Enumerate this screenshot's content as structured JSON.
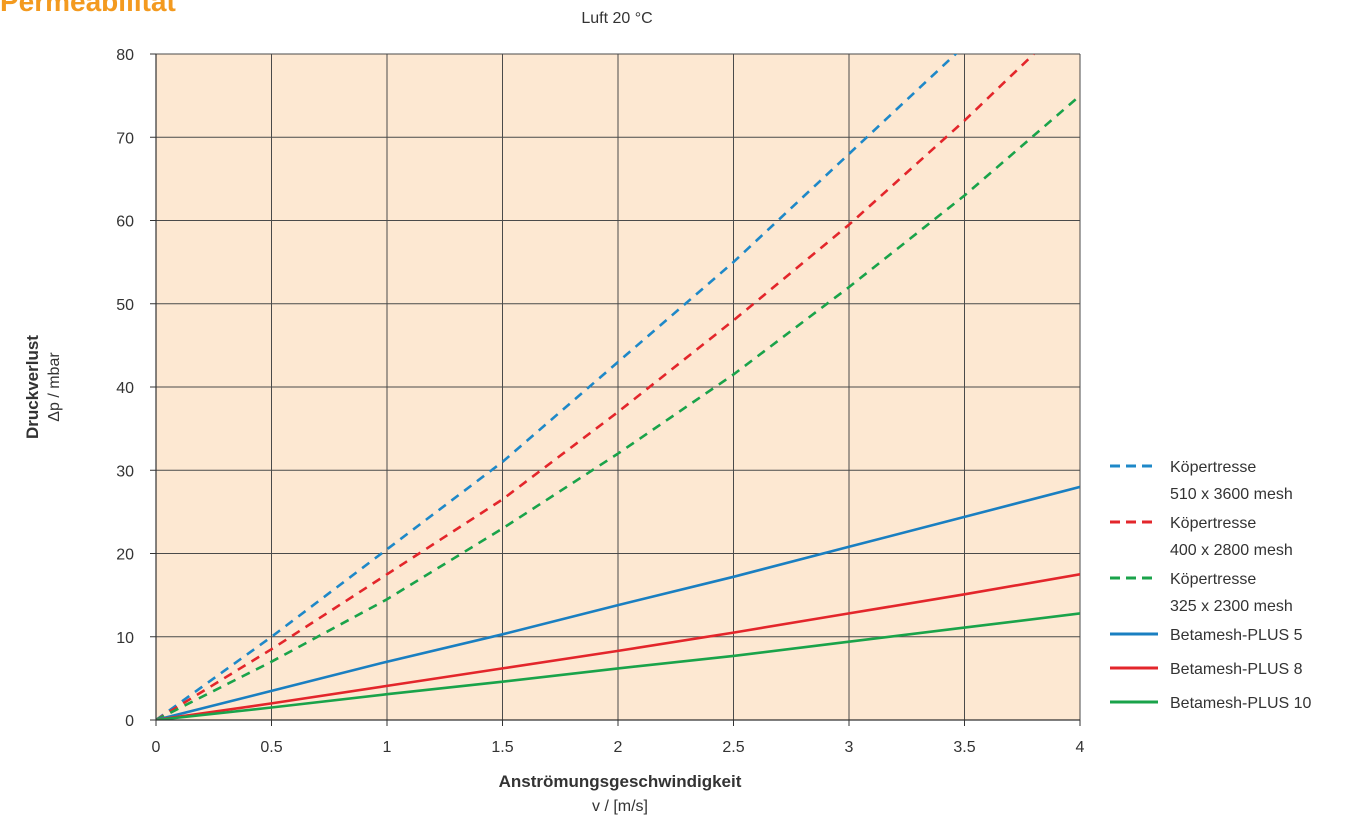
{
  "page": {
    "title": "Permeabilität"
  },
  "chart_data": {
    "type": "line",
    "title": "Luft 20 °C",
    "xlabel": "Anströmungsgeschwindigkeit",
    "xunit": "v / [m/s]",
    "ylabel": "Druckverlust",
    "yunit": "Δp / mbar",
    "xlim": [
      0,
      4
    ],
    "ylim": [
      0,
      80
    ],
    "xticks": [
      0,
      0.5,
      1,
      1.5,
      2,
      2.5,
      3,
      3.5,
      4
    ],
    "xtick_labels": [
      "0",
      "0.5",
      "1",
      "1.5",
      "2",
      "2.5",
      "3",
      "3.5",
      "4"
    ],
    "yticks": [
      0,
      10,
      20,
      30,
      40,
      50,
      60,
      70,
      80
    ],
    "ytick_labels": [
      "0",
      "10",
      "20",
      "30",
      "40",
      "50",
      "60",
      "70",
      "80"
    ],
    "grid": true,
    "background": "#fde8d2",
    "legend_position": "right",
    "series": [
      {
        "name": "Köpertresse",
        "name2": "510 x 3600 mesh",
        "style": "dashed",
        "color": "#1e88c8",
        "x": [
          0,
          0.5,
          1,
          1.5,
          2,
          2.5,
          3,
          3.5
        ],
        "y": [
          0,
          10,
          20.5,
          31,
          43,
          55,
          68,
          81
        ]
      },
      {
        "name": "Köpertresse",
        "name2": "400 x 2800 mesh",
        "style": "dashed",
        "color": "#e3262b",
        "x": [
          0,
          0.5,
          1,
          1.5,
          2,
          2.5,
          3,
          3.5,
          3.8
        ],
        "y": [
          0,
          8.5,
          17.5,
          26.5,
          37,
          48,
          59.5,
          72,
          80
        ]
      },
      {
        "name": "Köpertresse",
        "name2": "325 x 2300 mesh",
        "style": "dashed",
        "color": "#1aa34a",
        "x": [
          0,
          0.5,
          1,
          1.5,
          2,
          2.5,
          3,
          3.5,
          4
        ],
        "y": [
          0,
          7,
          14.5,
          23,
          32,
          41.5,
          52,
          63,
          75
        ]
      },
      {
        "name": "Betamesh-PLUS 5",
        "style": "solid",
        "color": "#1a7fc1",
        "x": [
          0,
          0.5,
          1,
          1.5,
          2,
          2.5,
          3,
          3.5,
          4
        ],
        "y": [
          0,
          3.5,
          7,
          10.3,
          13.8,
          17.2,
          20.8,
          24.4,
          28
        ]
      },
      {
        "name": "Betamesh-PLUS 8",
        "style": "solid",
        "color": "#e3262b",
        "x": [
          0,
          0.5,
          1,
          1.5,
          2,
          2.5,
          3,
          3.5,
          4
        ],
        "y": [
          0,
          2,
          4.1,
          6.2,
          8.3,
          10.5,
          12.8,
          15.1,
          17.5
        ]
      },
      {
        "name": "Betamesh-PLUS 10",
        "style": "solid",
        "color": "#1aa34a",
        "x": [
          0,
          0.5,
          1,
          1.5,
          2,
          2.5,
          3,
          3.5,
          4
        ],
        "y": [
          0,
          1.5,
          3.1,
          4.6,
          6.2,
          7.7,
          9.4,
          11.1,
          12.8
        ]
      }
    ]
  }
}
